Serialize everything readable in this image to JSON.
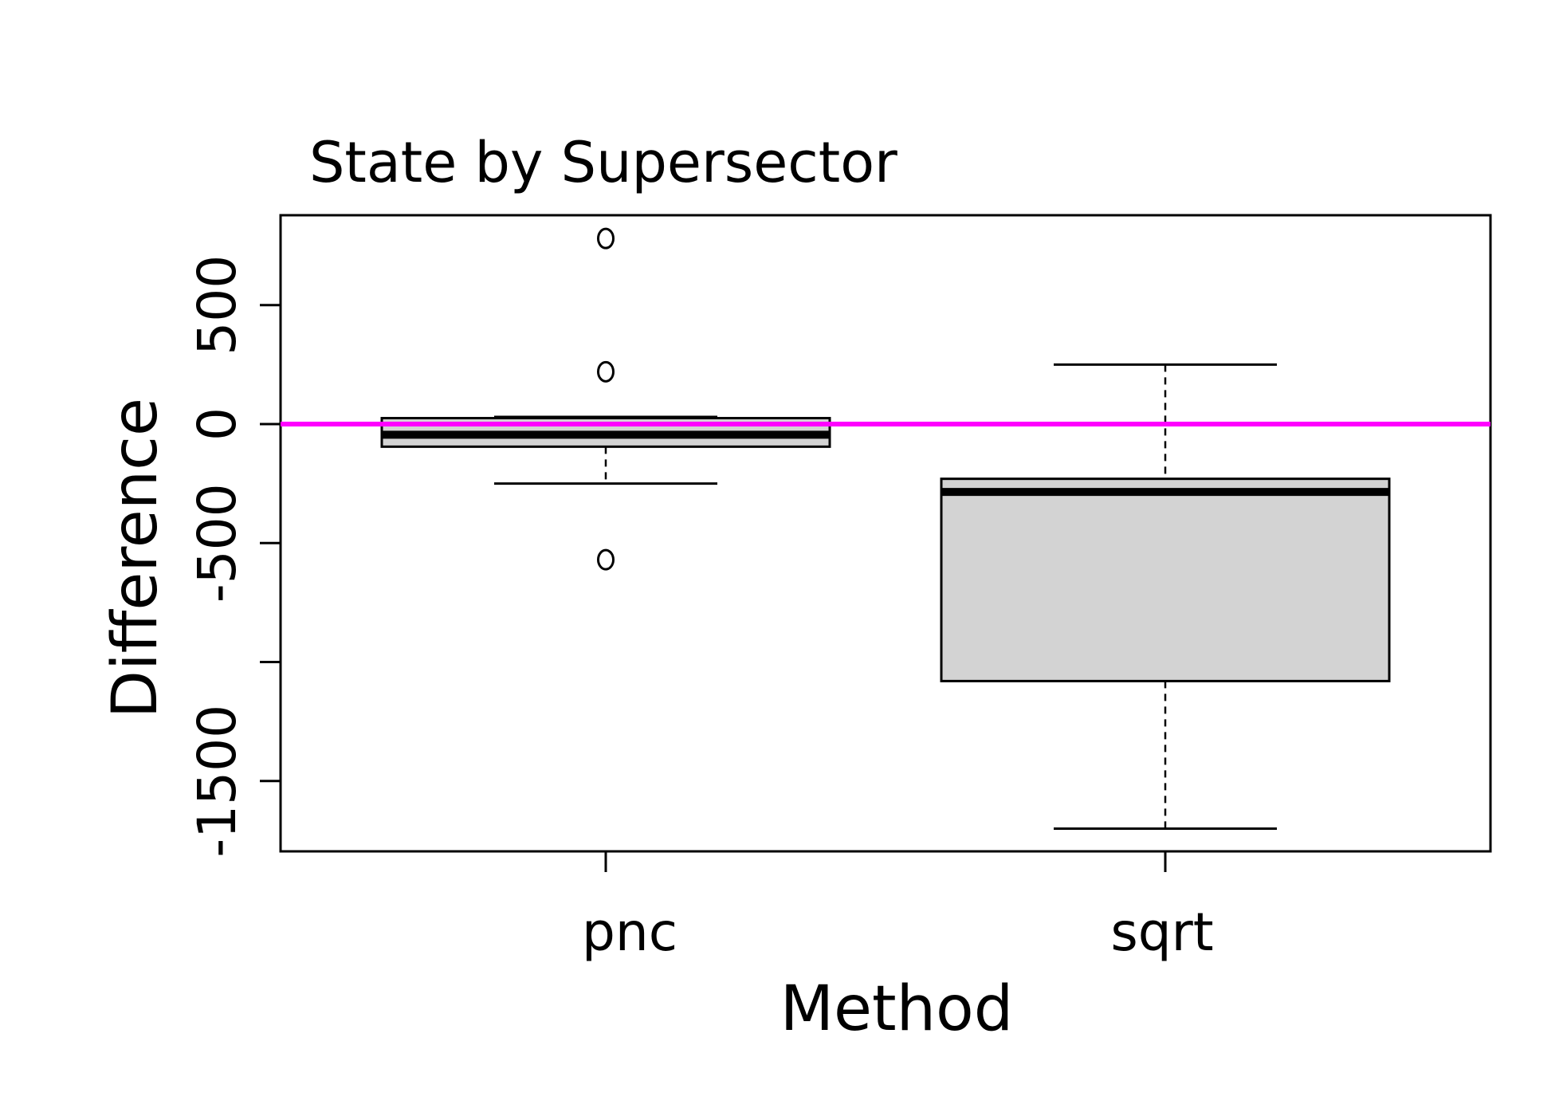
{
  "chart_data": {
    "type": "box",
    "title": "State by Supersector",
    "xlabel": "Method",
    "ylabel": "Difference",
    "categories": [
      "pnc",
      "sqrt"
    ],
    "y_ticks": [
      500,
      0,
      -500,
      -1000,
      -1500
    ],
    "y_tick_labels": [
      "500",
      "0",
      "-500",
      "",
      "-1500"
    ],
    "ylim": [
      -1800,
      880
    ],
    "reference_line": {
      "y": 0,
      "color": "#ff00ff"
    },
    "box_fill": "#d3d3d3",
    "boxes": [
      {
        "category": "pnc",
        "whisker_low": -250,
        "q1": -95,
        "median": -45,
        "q3": 25,
        "whisker_high": 30,
        "outliers": [
          780,
          220,
          -570
        ]
      },
      {
        "category": "sqrt",
        "whisker_low": -1700,
        "q1": -1080,
        "median": -285,
        "q3": -230,
        "whisker_high": 250,
        "outliers": []
      }
    ]
  }
}
